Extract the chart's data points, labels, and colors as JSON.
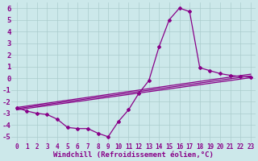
{
  "background_color": "#cce8ea",
  "grid_color": "#aacccc",
  "line_color": "#880088",
  "xlabel": "Windchill (Refroidissement éolien,°C)",
  "xlabel_fontsize": 6.5,
  "ytick_fontsize": 6.5,
  "xtick_fontsize": 5.5,
  "ylim": [
    -5.5,
    6.5
  ],
  "xlim": [
    -0.5,
    23.5
  ],
  "xticks": [
    0,
    1,
    2,
    3,
    4,
    5,
    6,
    7,
    8,
    9,
    10,
    11,
    12,
    13,
    14,
    15,
    16,
    17,
    18,
    19,
    20,
    21,
    22,
    23
  ],
  "yticks": [
    -5,
    -4,
    -3,
    -2,
    -1,
    0,
    1,
    2,
    3,
    4,
    5,
    6
  ],
  "series": [
    {
      "x": [
        0,
        1,
        2,
        3,
        4,
        5,
        6,
        7,
        8,
        9,
        10,
        11,
        12,
        13,
        14,
        15,
        16,
        17,
        18,
        19,
        20,
        21,
        22,
        23
      ],
      "y": [
        -2.5,
        -2.8,
        -3.0,
        -3.1,
        -3.5,
        -4.2,
        -4.3,
        -4.3,
        -4.7,
        -5.0,
        -3.7,
        -2.7,
        -1.3,
        -0.2,
        2.7,
        5.0,
        6.0,
        5.7,
        0.9,
        0.65,
        0.4,
        0.25,
        0.15,
        0.1
      ],
      "marker": "D",
      "markersize": 2.0,
      "linewidth": 0.9
    },
    {
      "x": [
        0,
        23
      ],
      "y": [
        -2.5,
        0.35
      ],
      "marker": null,
      "linewidth": 0.9
    },
    {
      "x": [
        0,
        23
      ],
      "y": [
        -2.6,
        0.2
      ],
      "marker": null,
      "linewidth": 0.9
    },
    {
      "x": [
        0,
        23
      ],
      "y": [
        -2.7,
        0.05
      ],
      "marker": null,
      "linewidth": 0.9
    }
  ]
}
